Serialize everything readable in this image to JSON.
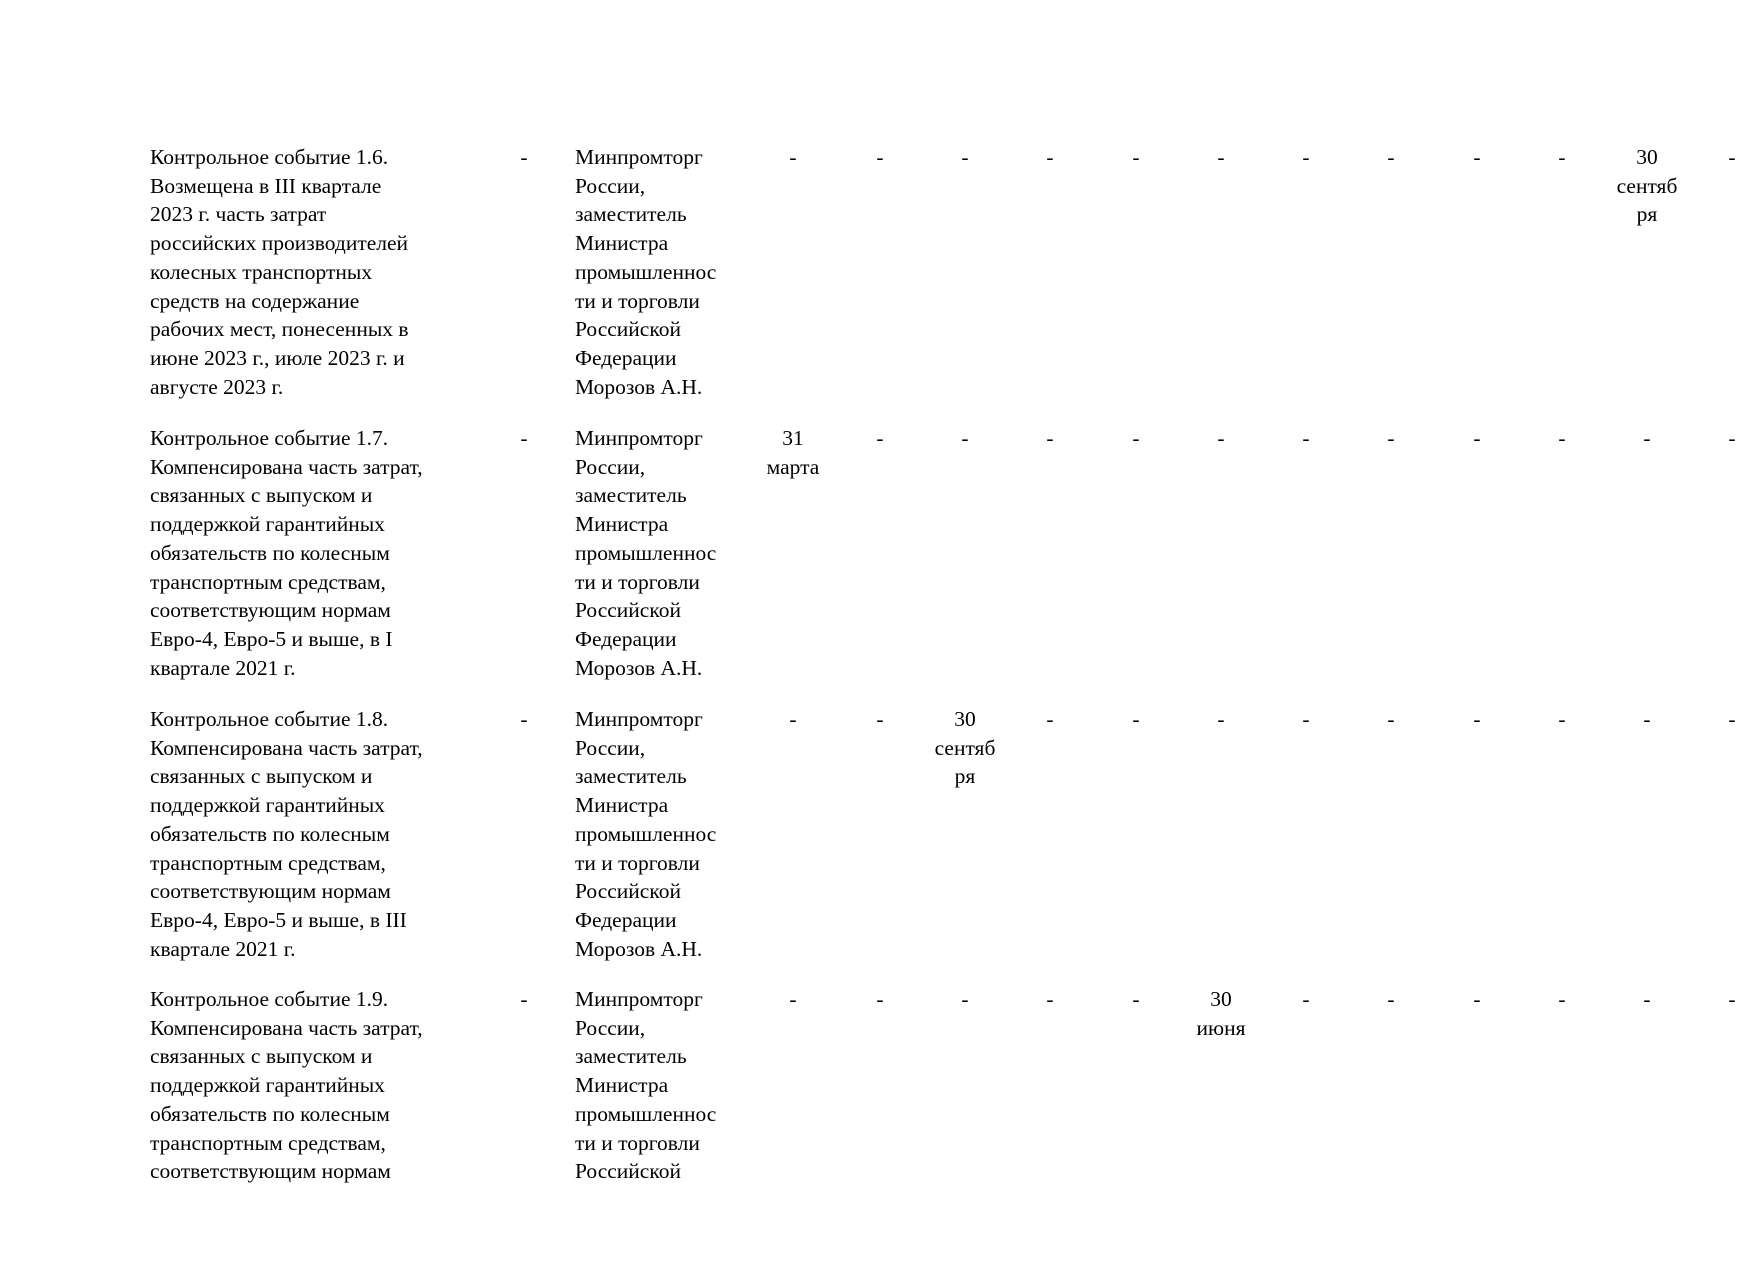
{
  "rows": [
    {
      "event": "Контрольное событие 1.6.\nВозмещена в III квартале\n2023 г. часть затрат\nроссийских производителей\nколесных транспортных\nсредств на содержание\nрабочих мест, понесенных в\nиюне 2023 г., июле 2023 г. и\nавгусте 2023 г.",
      "col2": "-",
      "responsible": "Минпромторг\nРоссии,\nзаместитель\nМинистра\nпромышленнос\nти и торговли\nРоссийской\nФедерации\nМорозов А.Н.",
      "dates": [
        "-",
        "-",
        "-",
        "-",
        "-",
        "-",
        "-",
        "-",
        "-",
        "-",
        "30\nсентяб\nря",
        "-"
      ]
    },
    {
      "event": "Контрольное событие 1.7.\nКомпенсирована часть затрат,\nсвязанных с выпуском и\nподдержкой гарантийных\nобязательств по колесным\nтранспортным средствам,\nсоответствующим нормам\nЕвро-4, Евро-5 и выше, в I\nквартале 2021 г.",
      "col2": "-",
      "responsible": "Минпромторг\nРоссии,\nзаместитель\nМинистра\nпромышленнос\nти и торговли\nРоссийской\nФедерации\nМорозов А.Н.",
      "dates": [
        "31\nмарта",
        "-",
        "-",
        "-",
        "-",
        "-",
        "-",
        "-",
        "-",
        "-",
        "-",
        "-"
      ]
    },
    {
      "event": "Контрольное событие 1.8.\nКомпенсирована часть затрат,\nсвязанных с выпуском и\nподдержкой гарантийных\nобязательств по колесным\nтранспортным средствам,\nсоответствующим нормам\nЕвро-4, Евро-5 и выше, в III\nквартале 2021 г.",
      "col2": "-",
      "responsible": "Минпромторг\nРоссии,\nзаместитель\nМинистра\nпромышленнос\nти и торговли\nРоссийской\nФедерации\nМорозов А.Н.",
      "dates": [
        "-",
        "-",
        "30\nсентяб\nря",
        "-",
        "-",
        "-",
        "-",
        "-",
        "-",
        "-",
        "-",
        "-"
      ]
    },
    {
      "event": "Контрольное событие 1.9.\nКомпенсирована часть затрат,\nсвязанных с выпуском и\nподдержкой гарантийных\nобязательств по колесным\nтранспортным средствам,\nсоответствующим нормам",
      "col2": "-",
      "responsible": "Минпромторг\nРоссии,\nзаместитель\nМинистра\nпромышленнос\nти и торговли\nРоссийской",
      "dates": [
        "-",
        "-",
        "-",
        "-",
        "-",
        "30\nиюня",
        "-",
        "-",
        "-",
        "-",
        "-",
        "-"
      ]
    }
  ]
}
